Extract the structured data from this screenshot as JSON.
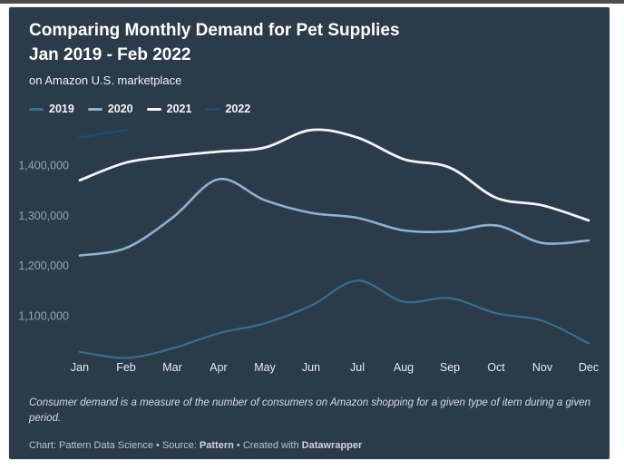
{
  "header": {
    "title_line1": "Comparing Monthly Demand for Pet Supplies",
    "title_line2": "Jan 2019 - Feb 2022",
    "subtitle": "on Amazon U.S. marketplace"
  },
  "legend": {
    "items": [
      {
        "label": "2019",
        "color": "#35708c"
      },
      {
        "label": "2020",
        "color": "#8ab3cf"
      },
      {
        "label": "2021",
        "color": "#f3f7fa"
      },
      {
        "label": "2022",
        "color": "#1a4d6e"
      }
    ]
  },
  "chart_data": {
    "type": "line",
    "title": "Comparing Monthly Demand for Pet Supplies Jan 2019 - Feb 2022",
    "subtitle": "on Amazon U.S. marketplace",
    "categories": [
      "Jan",
      "Feb",
      "Mar",
      "Apr",
      "May",
      "Jun",
      "Jul",
      "Aug",
      "Sep",
      "Oct",
      "Nov",
      "Dec"
    ],
    "series": [
      {
        "name": "2019",
        "color": "#35708c",
        "stroke_width": 2.2,
        "values": [
          1028000,
          1016000,
          1035000,
          1065000,
          1085000,
          1120000,
          1170000,
          1128000,
          1135000,
          1105000,
          1090000,
          1045000
        ]
      },
      {
        "name": "2020",
        "color": "#8ab3cf",
        "stroke_width": 2.6,
        "values": [
          1220000,
          1235000,
          1295000,
          1372000,
          1330000,
          1305000,
          1295000,
          1270000,
          1268000,
          1280000,
          1245000,
          1250000
        ]
      },
      {
        "name": "2021",
        "color": "#f3f7fa",
        "stroke_width": 2.8,
        "values": [
          1370000,
          1405000,
          1418000,
          1427000,
          1435000,
          1470000,
          1455000,
          1412000,
          1395000,
          1335000,
          1320000,
          1290000
        ]
      },
      {
        "name": "2022",
        "color": "#1a4d6e",
        "stroke_width": 2.6,
        "values": [
          1455000,
          1470000,
          null,
          null,
          null,
          null,
          null,
          null,
          null,
          null,
          null,
          null
        ]
      }
    ],
    "yticks": [
      1400000,
      1300000,
      1200000,
      1100000
    ],
    "ytick_labels": [
      "1,400,000",
      "1,300,000",
      "1,200,000",
      "1,100,000"
    ],
    "ylim": [
      995000,
      1492000
    ],
    "grid": false,
    "legend_position": "top",
    "xlabel": "",
    "ylabel": ""
  },
  "footer": {
    "description": "Consumer demand is a measure of the number of consumers on Amazon shopping for a given type of item during a given period.",
    "credit_chart": "Chart: Pattern Data Science",
    "credit_separator": "•",
    "credit_source_label": "Source:",
    "credit_source": "Pattern",
    "credit_created": "Created with",
    "credit_tool": "Datawrapper"
  },
  "colors": {
    "page_bg": "#ffffff",
    "card_bg": "#2c3b4a",
    "title_text": "#ffffff",
    "ytick_text": "#94a3b0",
    "xtick_text": "#e4eaef"
  }
}
